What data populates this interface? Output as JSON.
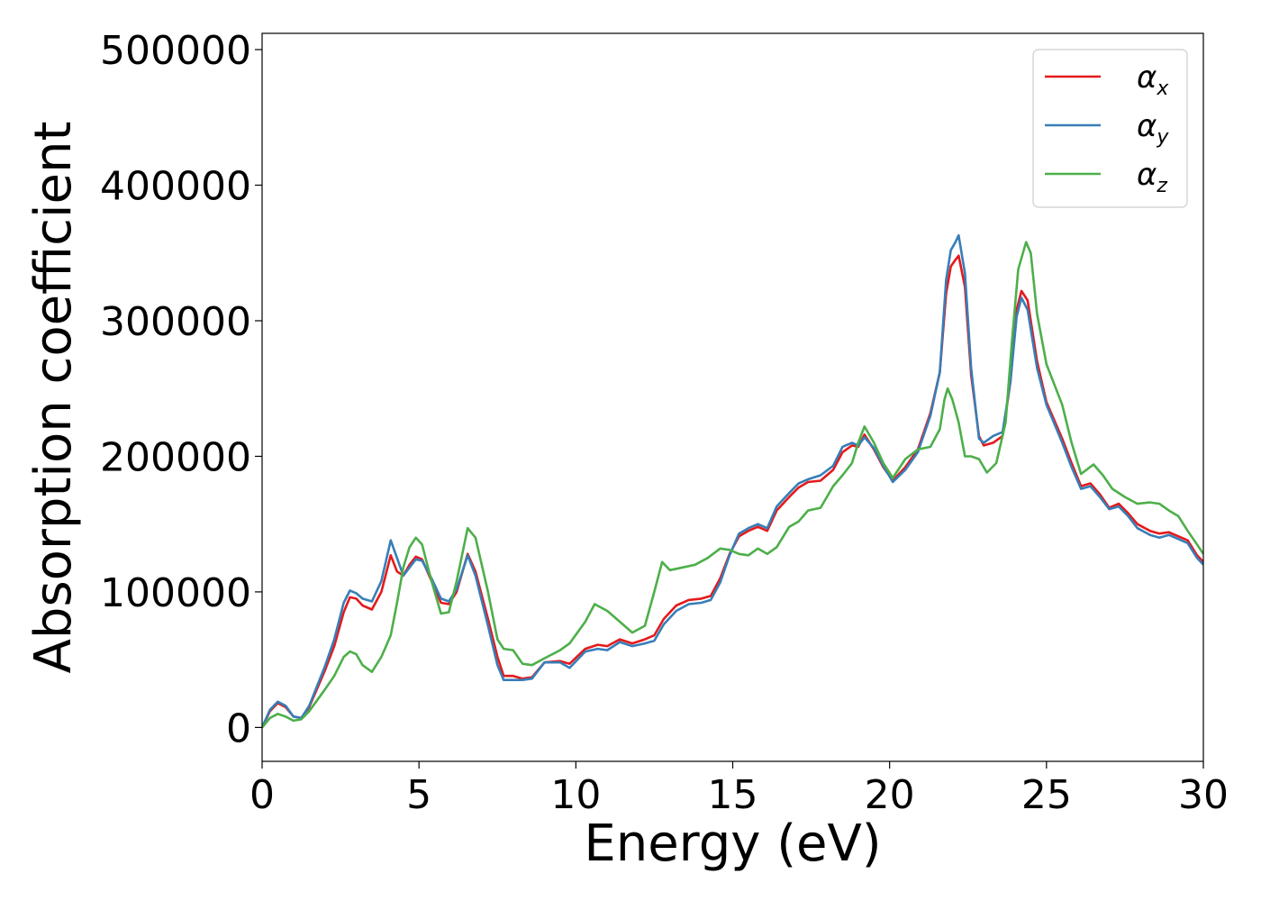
{
  "chart_data": {
    "type": "line",
    "xlabel": "Energy (eV)",
    "ylabel": "Absorption coefficient",
    "xlim": [
      0,
      30
    ],
    "ylim": [
      -25000,
      512000
    ],
    "x_ticks": [
      0,
      5,
      10,
      15,
      20,
      25,
      30
    ],
    "y_ticks": [
      0,
      100000,
      200000,
      300000,
      400000,
      500000
    ],
    "grid": false,
    "legend_position": "top-right",
    "series": [
      {
        "name": "αx",
        "symbol": "α",
        "sub": "x",
        "color": "#e41a1c",
        "points": [
          [
            0,
            0
          ],
          [
            0.25,
            12000
          ],
          [
            0.5,
            18000
          ],
          [
            0.75,
            15000
          ],
          [
            1.0,
            8000
          ],
          [
            1.25,
            7000
          ],
          [
            1.5,
            15000
          ],
          [
            2.0,
            42000
          ],
          [
            2.3,
            60000
          ],
          [
            2.6,
            85000
          ],
          [
            2.8,
            96000
          ],
          [
            3.0,
            95000
          ],
          [
            3.2,
            90000
          ],
          [
            3.5,
            87000
          ],
          [
            3.8,
            100000
          ],
          [
            4.1,
            127000
          ],
          [
            4.3,
            115000
          ],
          [
            4.5,
            112000
          ],
          [
            4.7,
            120000
          ],
          [
            4.9,
            126000
          ],
          [
            5.1,
            124000
          ],
          [
            5.4,
            108000
          ],
          [
            5.7,
            92000
          ],
          [
            5.95,
            91000
          ],
          [
            6.2,
            100000
          ],
          [
            6.55,
            128000
          ],
          [
            6.8,
            115000
          ],
          [
            7.2,
            80000
          ],
          [
            7.5,
            52000
          ],
          [
            7.7,
            38000
          ],
          [
            8.0,
            38000
          ],
          [
            8.3,
            36000
          ],
          [
            8.6,
            37000
          ],
          [
            9.0,
            48000
          ],
          [
            9.5,
            49000
          ],
          [
            9.8,
            47000
          ],
          [
            10.3,
            58000
          ],
          [
            10.7,
            61000
          ],
          [
            11.0,
            60000
          ],
          [
            11.4,
            65000
          ],
          [
            11.8,
            62000
          ],
          [
            12.2,
            65000
          ],
          [
            12.5,
            68000
          ],
          [
            12.8,
            80000
          ],
          [
            13.2,
            90000
          ],
          [
            13.6,
            94000
          ],
          [
            14.0,
            95000
          ],
          [
            14.3,
            97000
          ],
          [
            14.6,
            110000
          ],
          [
            14.9,
            128000
          ],
          [
            15.2,
            141000
          ],
          [
            15.5,
            145000
          ],
          [
            15.8,
            148000
          ],
          [
            16.1,
            145000
          ],
          [
            16.4,
            160000
          ],
          [
            16.8,
            170000
          ],
          [
            17.1,
            177000
          ],
          [
            17.4,
            181000
          ],
          [
            17.8,
            182000
          ],
          [
            18.2,
            190000
          ],
          [
            18.5,
            203000
          ],
          [
            18.8,
            208000
          ],
          [
            19.0,
            207000
          ],
          [
            19.2,
            216000
          ],
          [
            19.5,
            205000
          ],
          [
            19.8,
            192000
          ],
          [
            20.1,
            182000
          ],
          [
            20.5,
            192000
          ],
          [
            20.9,
            205000
          ],
          [
            21.3,
            232000
          ],
          [
            21.6,
            262000
          ],
          [
            21.8,
            320000
          ],
          [
            21.95,
            340000
          ],
          [
            22.1,
            345000
          ],
          [
            22.2,
            348000
          ],
          [
            22.4,
            325000
          ],
          [
            22.6,
            260000
          ],
          [
            22.85,
            215000
          ],
          [
            23.0,
            208000
          ],
          [
            23.3,
            210000
          ],
          [
            23.6,
            215000
          ],
          [
            23.85,
            255000
          ],
          [
            24.05,
            308000
          ],
          [
            24.2,
            322000
          ],
          [
            24.4,
            315000
          ],
          [
            24.7,
            270000
          ],
          [
            25.0,
            240000
          ],
          [
            25.5,
            213000
          ],
          [
            25.8,
            195000
          ],
          [
            26.1,
            178000
          ],
          [
            26.4,
            180000
          ],
          [
            26.7,
            172000
          ],
          [
            27.0,
            162000
          ],
          [
            27.3,
            165000
          ],
          [
            27.6,
            158000
          ],
          [
            27.9,
            150000
          ],
          [
            28.3,
            145000
          ],
          [
            28.6,
            143000
          ],
          [
            28.9,
            144000
          ],
          [
            29.2,
            141000
          ],
          [
            29.5,
            138000
          ],
          [
            29.8,
            127000
          ],
          [
            30,
            122000
          ]
        ]
      },
      {
        "name": "αy",
        "symbol": "α",
        "sub": "y",
        "color": "#377eb8",
        "points": [
          [
            0,
            0
          ],
          [
            0.25,
            13000
          ],
          [
            0.5,
            19000
          ],
          [
            0.75,
            16000
          ],
          [
            1.0,
            8000
          ],
          [
            1.25,
            7000
          ],
          [
            1.5,
            16000
          ],
          [
            2.0,
            45000
          ],
          [
            2.3,
            65000
          ],
          [
            2.6,
            92000
          ],
          [
            2.8,
            101000
          ],
          [
            3.0,
            99000
          ],
          [
            3.2,
            95000
          ],
          [
            3.5,
            93000
          ],
          [
            3.8,
            108000
          ],
          [
            4.1,
            138000
          ],
          [
            4.3,
            125000
          ],
          [
            4.5,
            112000
          ],
          [
            4.7,
            118000
          ],
          [
            4.9,
            124000
          ],
          [
            5.1,
            123000
          ],
          [
            5.4,
            110000
          ],
          [
            5.7,
            95000
          ],
          [
            5.95,
            93000
          ],
          [
            6.2,
            102000
          ],
          [
            6.55,
            127000
          ],
          [
            6.8,
            112000
          ],
          [
            7.2,
            75000
          ],
          [
            7.5,
            46000
          ],
          [
            7.7,
            35000
          ],
          [
            8.0,
            35000
          ],
          [
            8.3,
            35000
          ],
          [
            8.6,
            36000
          ],
          [
            9.0,
            48000
          ],
          [
            9.5,
            48000
          ],
          [
            9.8,
            44000
          ],
          [
            10.3,
            56000
          ],
          [
            10.7,
            58000
          ],
          [
            11.0,
            57000
          ],
          [
            11.4,
            63000
          ],
          [
            11.8,
            60000
          ],
          [
            12.2,
            62000
          ],
          [
            12.5,
            64000
          ],
          [
            12.8,
            76000
          ],
          [
            13.2,
            86000
          ],
          [
            13.6,
            91000
          ],
          [
            14.0,
            92000
          ],
          [
            14.3,
            94000
          ],
          [
            14.6,
            107000
          ],
          [
            14.9,
            127000
          ],
          [
            15.2,
            143000
          ],
          [
            15.5,
            147000
          ],
          [
            15.8,
            150000
          ],
          [
            16.1,
            147000
          ],
          [
            16.4,
            163000
          ],
          [
            16.8,
            173000
          ],
          [
            17.1,
            180000
          ],
          [
            17.4,
            183000
          ],
          [
            17.8,
            186000
          ],
          [
            18.2,
            193000
          ],
          [
            18.5,
            207000
          ],
          [
            18.8,
            210000
          ],
          [
            19.0,
            208000
          ],
          [
            19.2,
            214000
          ],
          [
            19.5,
            206000
          ],
          [
            19.8,
            193000
          ],
          [
            20.1,
            181000
          ],
          [
            20.5,
            190000
          ],
          [
            20.9,
            203000
          ],
          [
            21.3,
            230000
          ],
          [
            21.6,
            262000
          ],
          [
            21.8,
            330000
          ],
          [
            21.95,
            352000
          ],
          [
            22.1,
            358000
          ],
          [
            22.2,
            363000
          ],
          [
            22.4,
            335000
          ],
          [
            22.6,
            265000
          ],
          [
            22.85,
            213000
          ],
          [
            23.0,
            210000
          ],
          [
            23.3,
            215000
          ],
          [
            23.6,
            218000
          ],
          [
            23.85,
            255000
          ],
          [
            24.05,
            303000
          ],
          [
            24.2,
            317000
          ],
          [
            24.4,
            308000
          ],
          [
            24.7,
            265000
          ],
          [
            25.0,
            238000
          ],
          [
            25.5,
            210000
          ],
          [
            25.8,
            192000
          ],
          [
            26.1,
            176000
          ],
          [
            26.4,
            178000
          ],
          [
            26.7,
            170000
          ],
          [
            27.0,
            161000
          ],
          [
            27.3,
            163000
          ],
          [
            27.6,
            156000
          ],
          [
            27.9,
            147000
          ],
          [
            28.3,
            142000
          ],
          [
            28.6,
            140000
          ],
          [
            28.9,
            142000
          ],
          [
            29.2,
            139000
          ],
          [
            29.5,
            136000
          ],
          [
            29.8,
            125000
          ],
          [
            30,
            120000
          ]
        ]
      },
      {
        "name": "αz",
        "symbol": "α",
        "sub": "z",
        "color": "#4daf4a",
        "points": [
          [
            0,
            0
          ],
          [
            0.25,
            7000
          ],
          [
            0.5,
            10000
          ],
          [
            0.75,
            8000
          ],
          [
            1.0,
            5000
          ],
          [
            1.25,
            6000
          ],
          [
            1.5,
            12000
          ],
          [
            2.0,
            28000
          ],
          [
            2.3,
            38000
          ],
          [
            2.6,
            52000
          ],
          [
            2.8,
            56000
          ],
          [
            3.0,
            54000
          ],
          [
            3.2,
            46000
          ],
          [
            3.5,
            41000
          ],
          [
            3.8,
            52000
          ],
          [
            4.1,
            68000
          ],
          [
            4.3,
            92000
          ],
          [
            4.5,
            118000
          ],
          [
            4.7,
            133000
          ],
          [
            4.9,
            140000
          ],
          [
            5.1,
            135000
          ],
          [
            5.4,
            108000
          ],
          [
            5.7,
            84000
          ],
          [
            5.95,
            85000
          ],
          [
            6.2,
            108000
          ],
          [
            6.55,
            147000
          ],
          [
            6.8,
            140000
          ],
          [
            7.2,
            100000
          ],
          [
            7.5,
            65000
          ],
          [
            7.7,
            58000
          ],
          [
            8.0,
            57000
          ],
          [
            8.3,
            47000
          ],
          [
            8.6,
            46000
          ],
          [
            9.0,
            51000
          ],
          [
            9.5,
            57000
          ],
          [
            9.8,
            62000
          ],
          [
            10.3,
            78000
          ],
          [
            10.6,
            91000
          ],
          [
            11.0,
            86000
          ],
          [
            11.4,
            78000
          ],
          [
            11.8,
            70000
          ],
          [
            12.2,
            75000
          ],
          [
            12.5,
            100000
          ],
          [
            12.75,
            122000
          ],
          [
            13.0,
            116000
          ],
          [
            13.4,
            118000
          ],
          [
            13.8,
            120000
          ],
          [
            14.2,
            125000
          ],
          [
            14.6,
            132000
          ],
          [
            14.9,
            131000
          ],
          [
            15.2,
            128000
          ],
          [
            15.5,
            127000
          ],
          [
            15.8,
            132000
          ],
          [
            16.1,
            128000
          ],
          [
            16.4,
            133000
          ],
          [
            16.8,
            148000
          ],
          [
            17.1,
            152000
          ],
          [
            17.4,
            160000
          ],
          [
            17.8,
            162000
          ],
          [
            18.2,
            178000
          ],
          [
            18.5,
            186000
          ],
          [
            18.8,
            195000
          ],
          [
            19.0,
            210000
          ],
          [
            19.2,
            222000
          ],
          [
            19.5,
            210000
          ],
          [
            19.8,
            195000
          ],
          [
            20.1,
            184000
          ],
          [
            20.5,
            198000
          ],
          [
            20.9,
            205000
          ],
          [
            21.3,
            207000
          ],
          [
            21.6,
            220000
          ],
          [
            21.75,
            242000
          ],
          [
            21.85,
            250000
          ],
          [
            22.0,
            242000
          ],
          [
            22.2,
            225000
          ],
          [
            22.4,
            200000
          ],
          [
            22.6,
            200000
          ],
          [
            22.85,
            198000
          ],
          [
            23.1,
            188000
          ],
          [
            23.4,
            195000
          ],
          [
            23.7,
            225000
          ],
          [
            23.9,
            285000
          ],
          [
            24.1,
            338000
          ],
          [
            24.35,
            358000
          ],
          [
            24.5,
            350000
          ],
          [
            24.7,
            305000
          ],
          [
            25.0,
            268000
          ],
          [
            25.5,
            238000
          ],
          [
            25.8,
            210000
          ],
          [
            26.1,
            187000
          ],
          [
            26.5,
            194000
          ],
          [
            26.8,
            186000
          ],
          [
            27.1,
            176000
          ],
          [
            27.5,
            170000
          ],
          [
            27.9,
            165000
          ],
          [
            28.3,
            166000
          ],
          [
            28.6,
            165000
          ],
          [
            28.9,
            160000
          ],
          [
            29.2,
            156000
          ],
          [
            29.5,
            145000
          ],
          [
            29.8,
            135000
          ],
          [
            30,
            128000
          ]
        ]
      }
    ]
  }
}
